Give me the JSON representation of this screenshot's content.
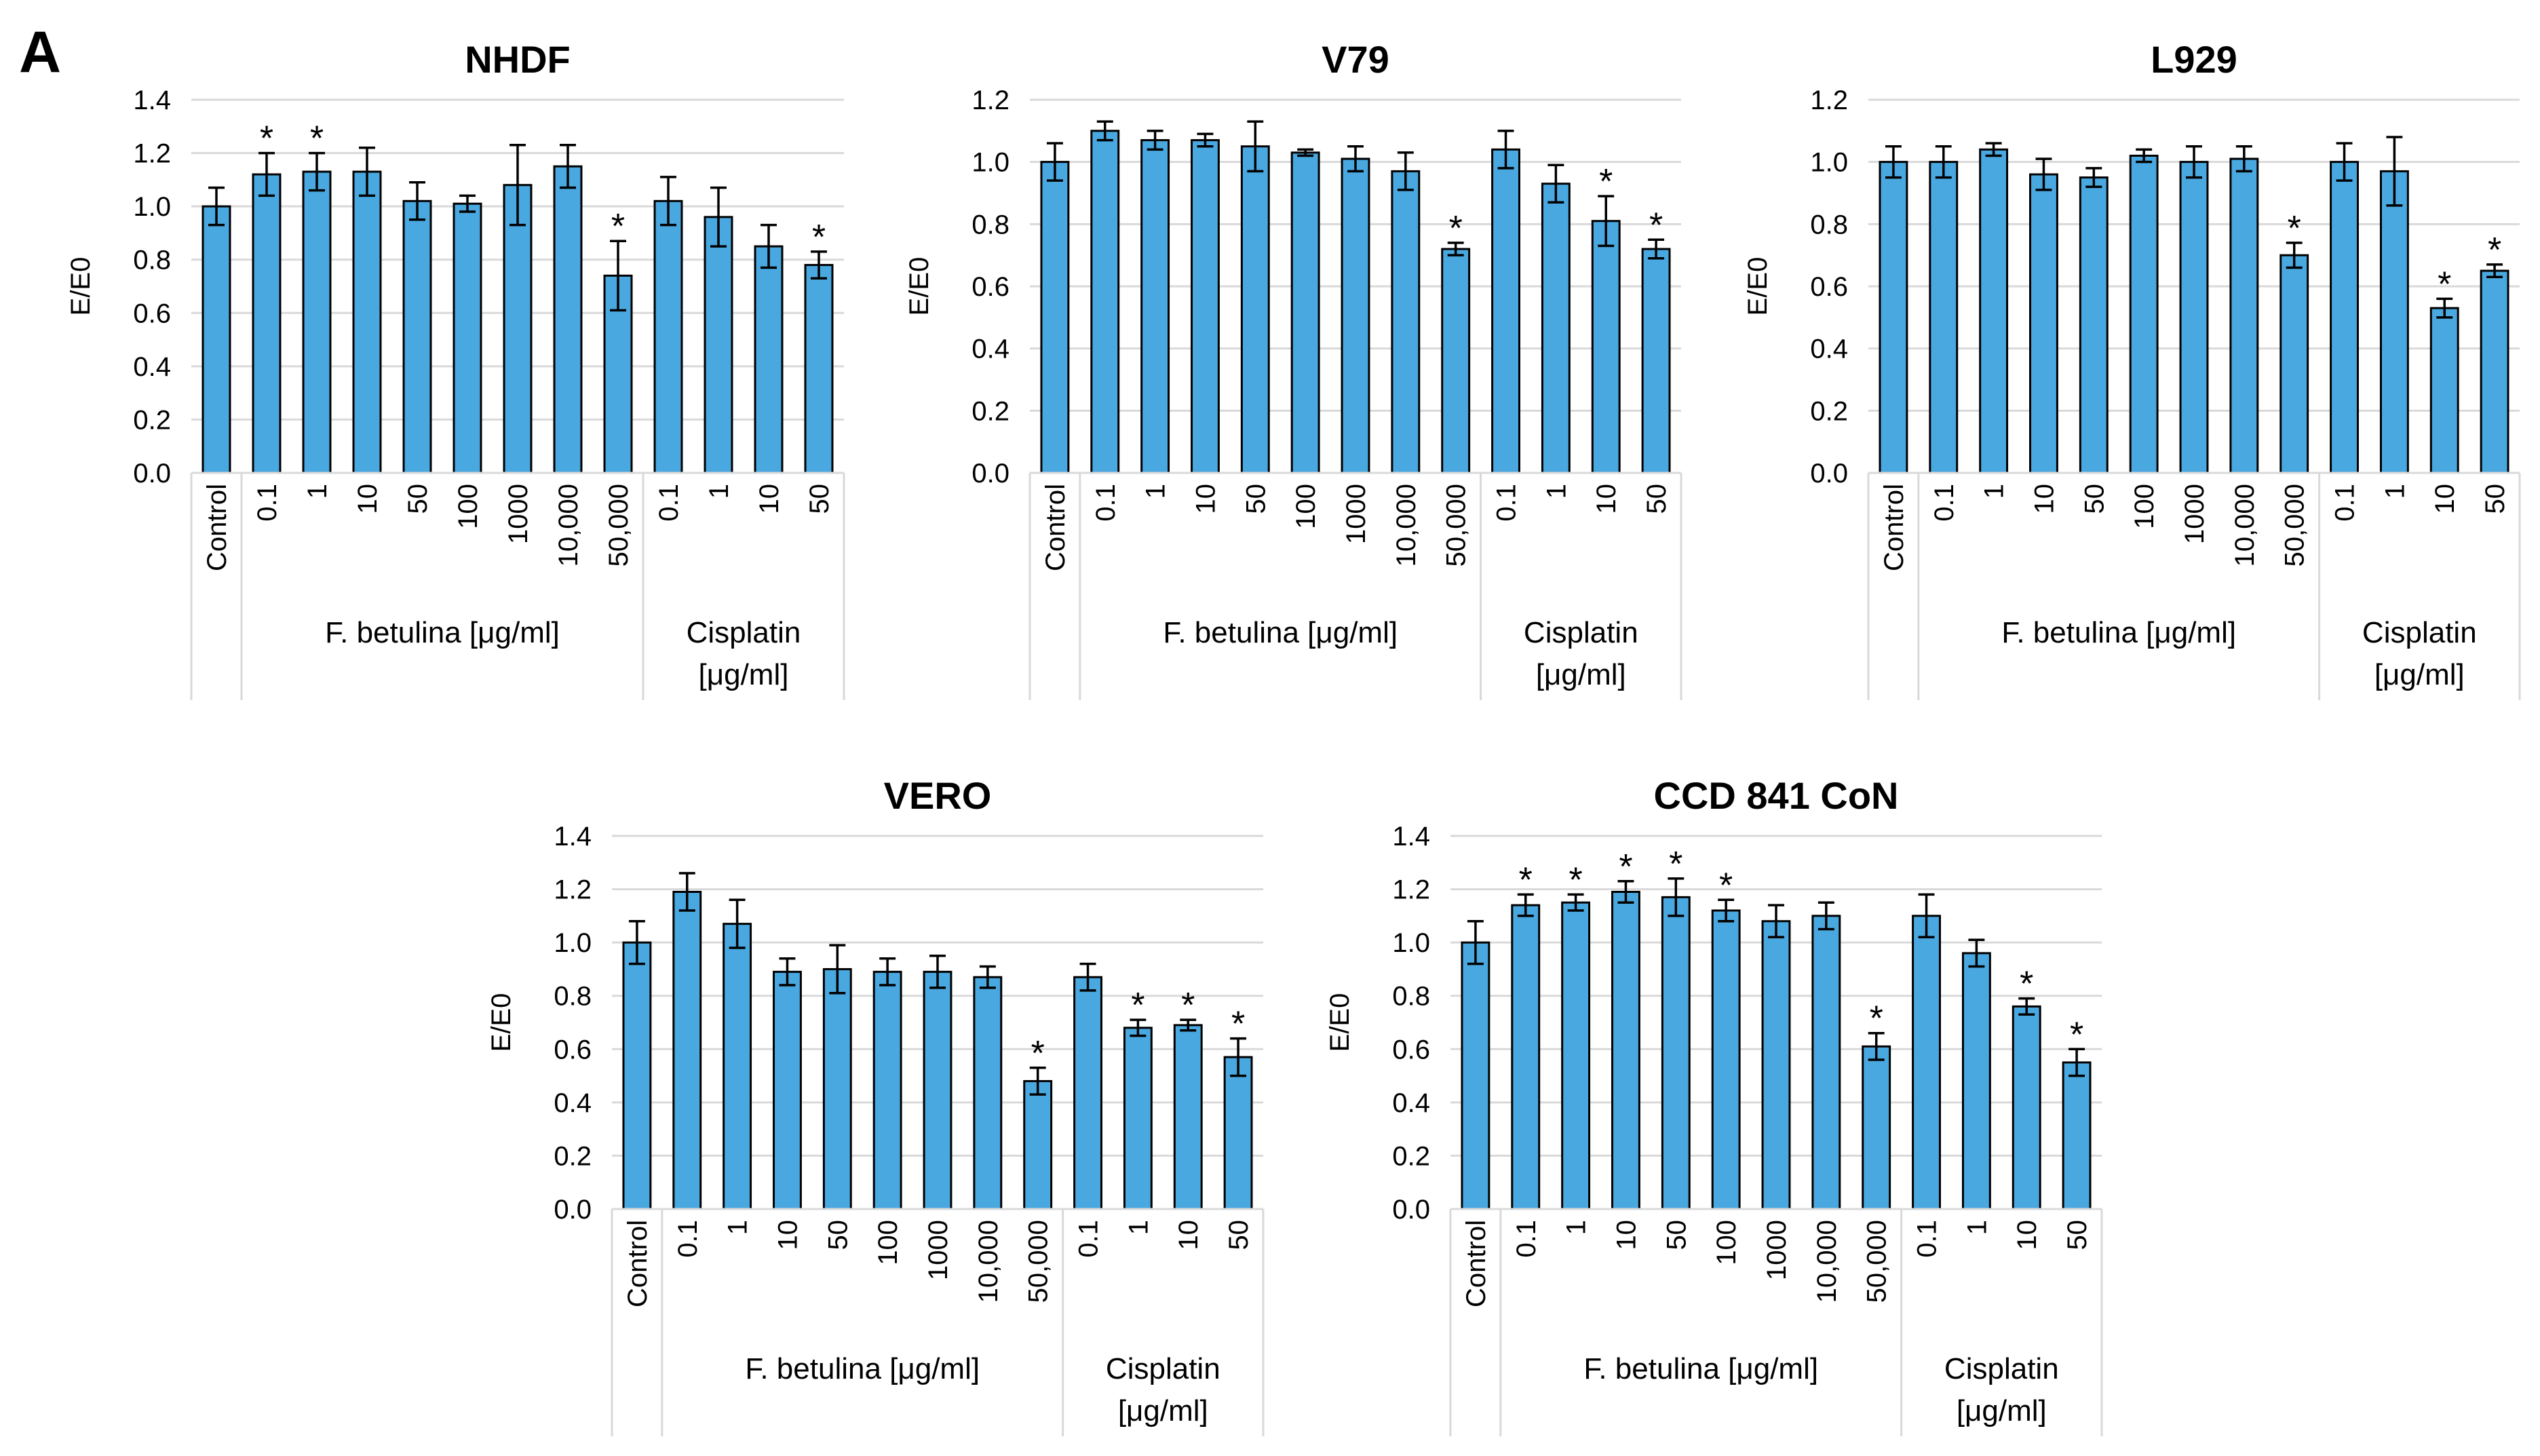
{
  "figure": {
    "panel_label": "A"
  },
  "style": {
    "bar_fill": "#4aa8e0",
    "bar_stroke": "#000000",
    "grid": "#d9d9d9",
    "axis_text": "#000000"
  },
  "chart_data": [
    {
      "id": "nhdf",
      "type": "bar",
      "title": "NHDF",
      "ylabel": "E/E0",
      "xlabel": "",
      "ylim": [
        0,
        1.4
      ],
      "yticks": [
        "0.0",
        "0.2",
        "0.4",
        "0.6",
        "0.8",
        "1.0",
        "1.2",
        "1.4"
      ],
      "grid": true,
      "categories": [
        "Control",
        "0.1",
        "1",
        "10",
        "50",
        "100",
        "1000",
        "10,000",
        "50,000",
        "0.1",
        "1",
        "10",
        "50"
      ],
      "values": [
        1.0,
        1.12,
        1.13,
        1.13,
        1.02,
        1.01,
        1.08,
        1.15,
        0.74,
        1.02,
        0.96,
        0.85,
        0.78
      ],
      "errors": [
        0.07,
        0.08,
        0.07,
        0.09,
        0.07,
        0.03,
        0.15,
        0.08,
        0.13,
        0.09,
        0.11,
        0.08,
        0.05
      ],
      "significant": [
        false,
        true,
        true,
        false,
        false,
        false,
        false,
        false,
        true,
        false,
        false,
        false,
        true
      ],
      "significance_mark": "*",
      "groups": [
        {
          "label_lines": [
            "F. betulina [μg/ml]"
          ]
        },
        {
          "label_lines": [
            "Cisplatin",
            "[μg/ml]"
          ]
        }
      ]
    },
    {
      "id": "v79",
      "type": "bar",
      "title": "V79",
      "ylabel": "E/E0",
      "xlabel": "",
      "ylim": [
        0,
        1.2
      ],
      "yticks": [
        "0.0",
        "0.2",
        "0.4",
        "0.6",
        "0.8",
        "1.0",
        "1.2"
      ],
      "grid": true,
      "categories": [
        "Control",
        "0.1",
        "1",
        "10",
        "50",
        "100",
        "1000",
        "10,000",
        "50,000",
        "0.1",
        "1",
        "10",
        "50"
      ],
      "values": [
        1.0,
        1.1,
        1.07,
        1.07,
        1.05,
        1.03,
        1.01,
        0.97,
        0.72,
        1.04,
        0.93,
        0.81,
        0.72
      ],
      "errors": [
        0.06,
        0.03,
        0.03,
        0.02,
        0.08,
        0.01,
        0.04,
        0.06,
        0.02,
        0.06,
        0.06,
        0.08,
        0.03
      ],
      "significant": [
        false,
        false,
        false,
        false,
        false,
        false,
        false,
        false,
        true,
        false,
        false,
        true,
        true
      ],
      "significance_mark": "*",
      "groups": [
        {
          "label_lines": [
            "F. betulina [μg/ml]"
          ]
        },
        {
          "label_lines": [
            "Cisplatin",
            "[μg/ml]"
          ]
        }
      ]
    },
    {
      "id": "l929",
      "type": "bar",
      "title": "L929",
      "ylabel": "E/E0",
      "xlabel": "",
      "ylim": [
        0,
        1.2
      ],
      "yticks": [
        "0.0",
        "0.2",
        "0.4",
        "0.6",
        "0.8",
        "1.0",
        "1.2"
      ],
      "grid": true,
      "categories": [
        "Control",
        "0.1",
        "1",
        "10",
        "50",
        "100",
        "1000",
        "10,000",
        "50,000",
        "0.1",
        "1",
        "10",
        "50"
      ],
      "values": [
        1.0,
        1.0,
        1.04,
        0.96,
        0.95,
        1.02,
        1.0,
        1.01,
        0.7,
        1.0,
        0.97,
        0.53,
        0.65
      ],
      "errors": [
        0.05,
        0.05,
        0.02,
        0.05,
        0.03,
        0.02,
        0.05,
        0.04,
        0.04,
        0.06,
        0.11,
        0.03,
        0.02
      ],
      "significant": [
        false,
        false,
        false,
        false,
        false,
        false,
        false,
        false,
        true,
        false,
        false,
        true,
        true
      ],
      "significance_mark": "*",
      "groups": [
        {
          "label_lines": [
            "F. betulina [μg/ml]"
          ]
        },
        {
          "label_lines": [
            "Cisplatin",
            "[μg/ml]"
          ]
        }
      ]
    },
    {
      "id": "vero",
      "type": "bar",
      "title": "VERO",
      "ylabel": "E/E0",
      "xlabel": "",
      "ylim": [
        0,
        1.4
      ],
      "yticks": [
        "0.0",
        "0.2",
        "0.4",
        "0.6",
        "0.8",
        "1.0",
        "1.2",
        "1.4"
      ],
      "grid": true,
      "categories": [
        "Control",
        "0.1",
        "1",
        "10",
        "50",
        "100",
        "1000",
        "10,000",
        "50,000",
        "0.1",
        "1",
        "10",
        "50"
      ],
      "values": [
        1.0,
        1.19,
        1.07,
        0.89,
        0.9,
        0.89,
        0.89,
        0.87,
        0.48,
        0.87,
        0.68,
        0.69,
        0.57
      ],
      "errors": [
        0.08,
        0.07,
        0.09,
        0.05,
        0.09,
        0.05,
        0.06,
        0.04,
        0.05,
        0.05,
        0.03,
        0.02,
        0.07
      ],
      "significant": [
        false,
        false,
        false,
        false,
        false,
        false,
        false,
        false,
        true,
        false,
        true,
        true,
        true
      ],
      "significance_mark": "*",
      "groups": [
        {
          "label_lines": [
            "F. betulina [μg/ml]"
          ]
        },
        {
          "label_lines": [
            "Cisplatin",
            "[μg/ml]"
          ]
        }
      ]
    },
    {
      "id": "ccd841",
      "type": "bar",
      "title": "CCD 841 CoN",
      "ylabel": "E/E0",
      "xlabel": "",
      "ylim": [
        0,
        1.4
      ],
      "yticks": [
        "0.0",
        "0.2",
        "0.4",
        "0.6",
        "0.8",
        "1.0",
        "1.2",
        "1.4"
      ],
      "grid": true,
      "categories": [
        "Control",
        "0.1",
        "1",
        "10",
        "50",
        "100",
        "1000",
        "10,000",
        "50,000",
        "0.1",
        "1",
        "10",
        "50"
      ],
      "values": [
        1.0,
        1.14,
        1.15,
        1.19,
        1.17,
        1.12,
        1.08,
        1.1,
        0.61,
        1.1,
        0.96,
        0.76,
        0.55
      ],
      "errors": [
        0.08,
        0.04,
        0.03,
        0.04,
        0.07,
        0.04,
        0.06,
        0.05,
        0.05,
        0.08,
        0.05,
        0.03,
        0.05
      ],
      "significant": [
        false,
        true,
        true,
        true,
        true,
        true,
        false,
        false,
        true,
        false,
        false,
        true,
        true
      ],
      "significance_mark": "*",
      "groups": [
        {
          "label_lines": [
            "F. betulina [μg/ml]"
          ]
        },
        {
          "label_lines": [
            "Cisplatin",
            "[μg/ml]"
          ]
        }
      ]
    }
  ]
}
